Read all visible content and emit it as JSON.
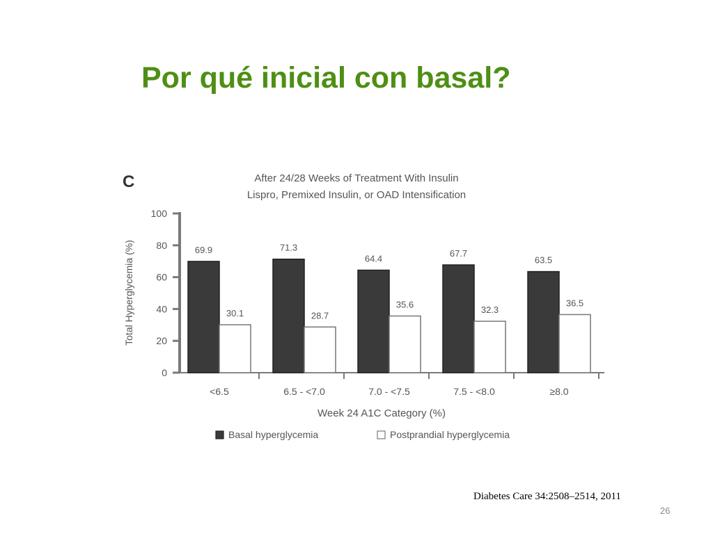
{
  "slide": {
    "title": "Por qué inicial con basal?",
    "citation": "Diabetes Care 34:2508–2514, 2011",
    "page_number": "26"
  },
  "colors": {
    "title": "#4e8f14",
    "basal_bar": "#3a3a3a",
    "postprandial_bar": "#ffffff",
    "axis": "#7a7a7a",
    "text": "#555555"
  },
  "chart_data": {
    "type": "bar",
    "panel_label": "C",
    "title": "After 24/28 Weeks of Treatment With Insulin",
    "subtitle": "Lispro, Premixed Insulin, or OAD Intensification",
    "xlabel": "Week 24 A1C Category (%)",
    "ylabel": "Total Hyperglycemia (%)",
    "categories": [
      "<6.5",
      "6.5 - <7.0",
      "7.0 - <7.5",
      "7.5 - <8.0",
      "≥8.0"
    ],
    "series": [
      {
        "name": "Basal hyperglycemia",
        "values": [
          69.9,
          71.3,
          64.4,
          67.7,
          63.5
        ],
        "labels": [
          "69.9",
          "71.3",
          "64.4",
          "67.7",
          "63.5"
        ]
      },
      {
        "name": "Postprandial hyperglycemia",
        "values": [
          30.1,
          28.7,
          35.6,
          32.3,
          36.5
        ],
        "labels": [
          "30.1",
          "28.7",
          "35.6",
          "32.3",
          "36.5"
        ]
      }
    ],
    "ylim": [
      0,
      100
    ],
    "yticks": [
      "0",
      "20",
      "40",
      "60",
      "80",
      "100"
    ],
    "grid": false,
    "legend_position": "bottom"
  }
}
